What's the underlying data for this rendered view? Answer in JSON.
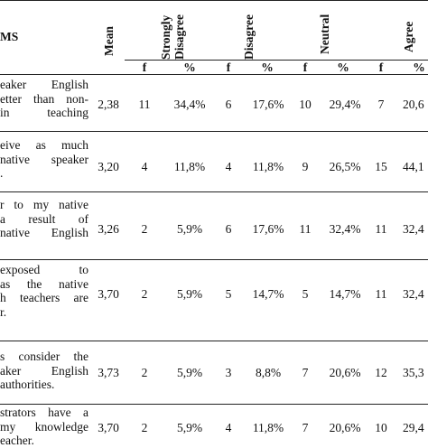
{
  "header": {
    "items": "MS",
    "mean": "Mean",
    "strongly_disagree_1": "Strongly",
    "strongly_disagree_2": "Disagree",
    "disagree": "Disagree",
    "neutral": "Neutral",
    "agree": "Agree",
    "f": "f",
    "pct": "%"
  },
  "rows": [
    {
      "item_lines": [
        "eaker  English",
        "etter  than  non-",
        "in    teaching"
      ],
      "mean": "2,38",
      "sd_f": "11",
      "sd_p": "34,4%",
      "d_f": "6",
      "d_p": "17,6%",
      "n_f": "10",
      "n_p": "29,4%",
      "a_f": "7",
      "a_p": "20,6"
    },
    {
      "item_lines": [
        "eive  as  much",
        "native  speaker",
        "."
      ],
      "mean": "3,20",
      "sd_f": "4",
      "sd_p": "11,8%",
      "d_f": "4",
      "d_p": "11,8%",
      "n_f": "9",
      "n_p": "26,5%",
      "a_f": "15",
      "a_p": "44,1"
    },
    {
      "item_lines": [
        "r  to  my  native",
        "a  result  of",
        "native  English"
      ],
      "mean": "3,26",
      "sd_f": "2",
      "sd_p": "5,9%",
      "d_f": "6",
      "d_p": "17,6%",
      "n_f": "11",
      "n_p": "32,4%",
      "a_f": "11",
      "a_p": "32,4"
    },
    {
      "item_lines": [
        "exposed    to",
        "as  the  native",
        "h  teachers  are",
        "r."
      ],
      "mean": "3,70",
      "sd_f": "2",
      "sd_p": "5,9%",
      "d_f": "5",
      "d_p": "14,7%",
      "n_f": "5",
      "n_p": "14,7%",
      "a_f": "11",
      "a_p": "32,4"
    },
    {
      "item_lines": [
        "s  consider  the",
        "aker  English",
        "authorities."
      ],
      "mean": "3,73",
      "sd_f": "2",
      "sd_p": "5,9%",
      "d_f": "3",
      "d_p": "8,8%",
      "n_f": "7",
      "n_p": "20,6%",
      "a_f": "12",
      "a_p": "35,3"
    },
    {
      "item_lines": [
        "strators  have  a",
        "my  knowledge",
        "eacher."
      ],
      "mean": "3,70",
      "sd_f": "2",
      "sd_p": "5,9%",
      "d_f": "4",
      "d_p": "11,8%",
      "n_f": "7",
      "n_p": "20,6%",
      "a_f": "10",
      "a_p": "29,4"
    }
  ]
}
